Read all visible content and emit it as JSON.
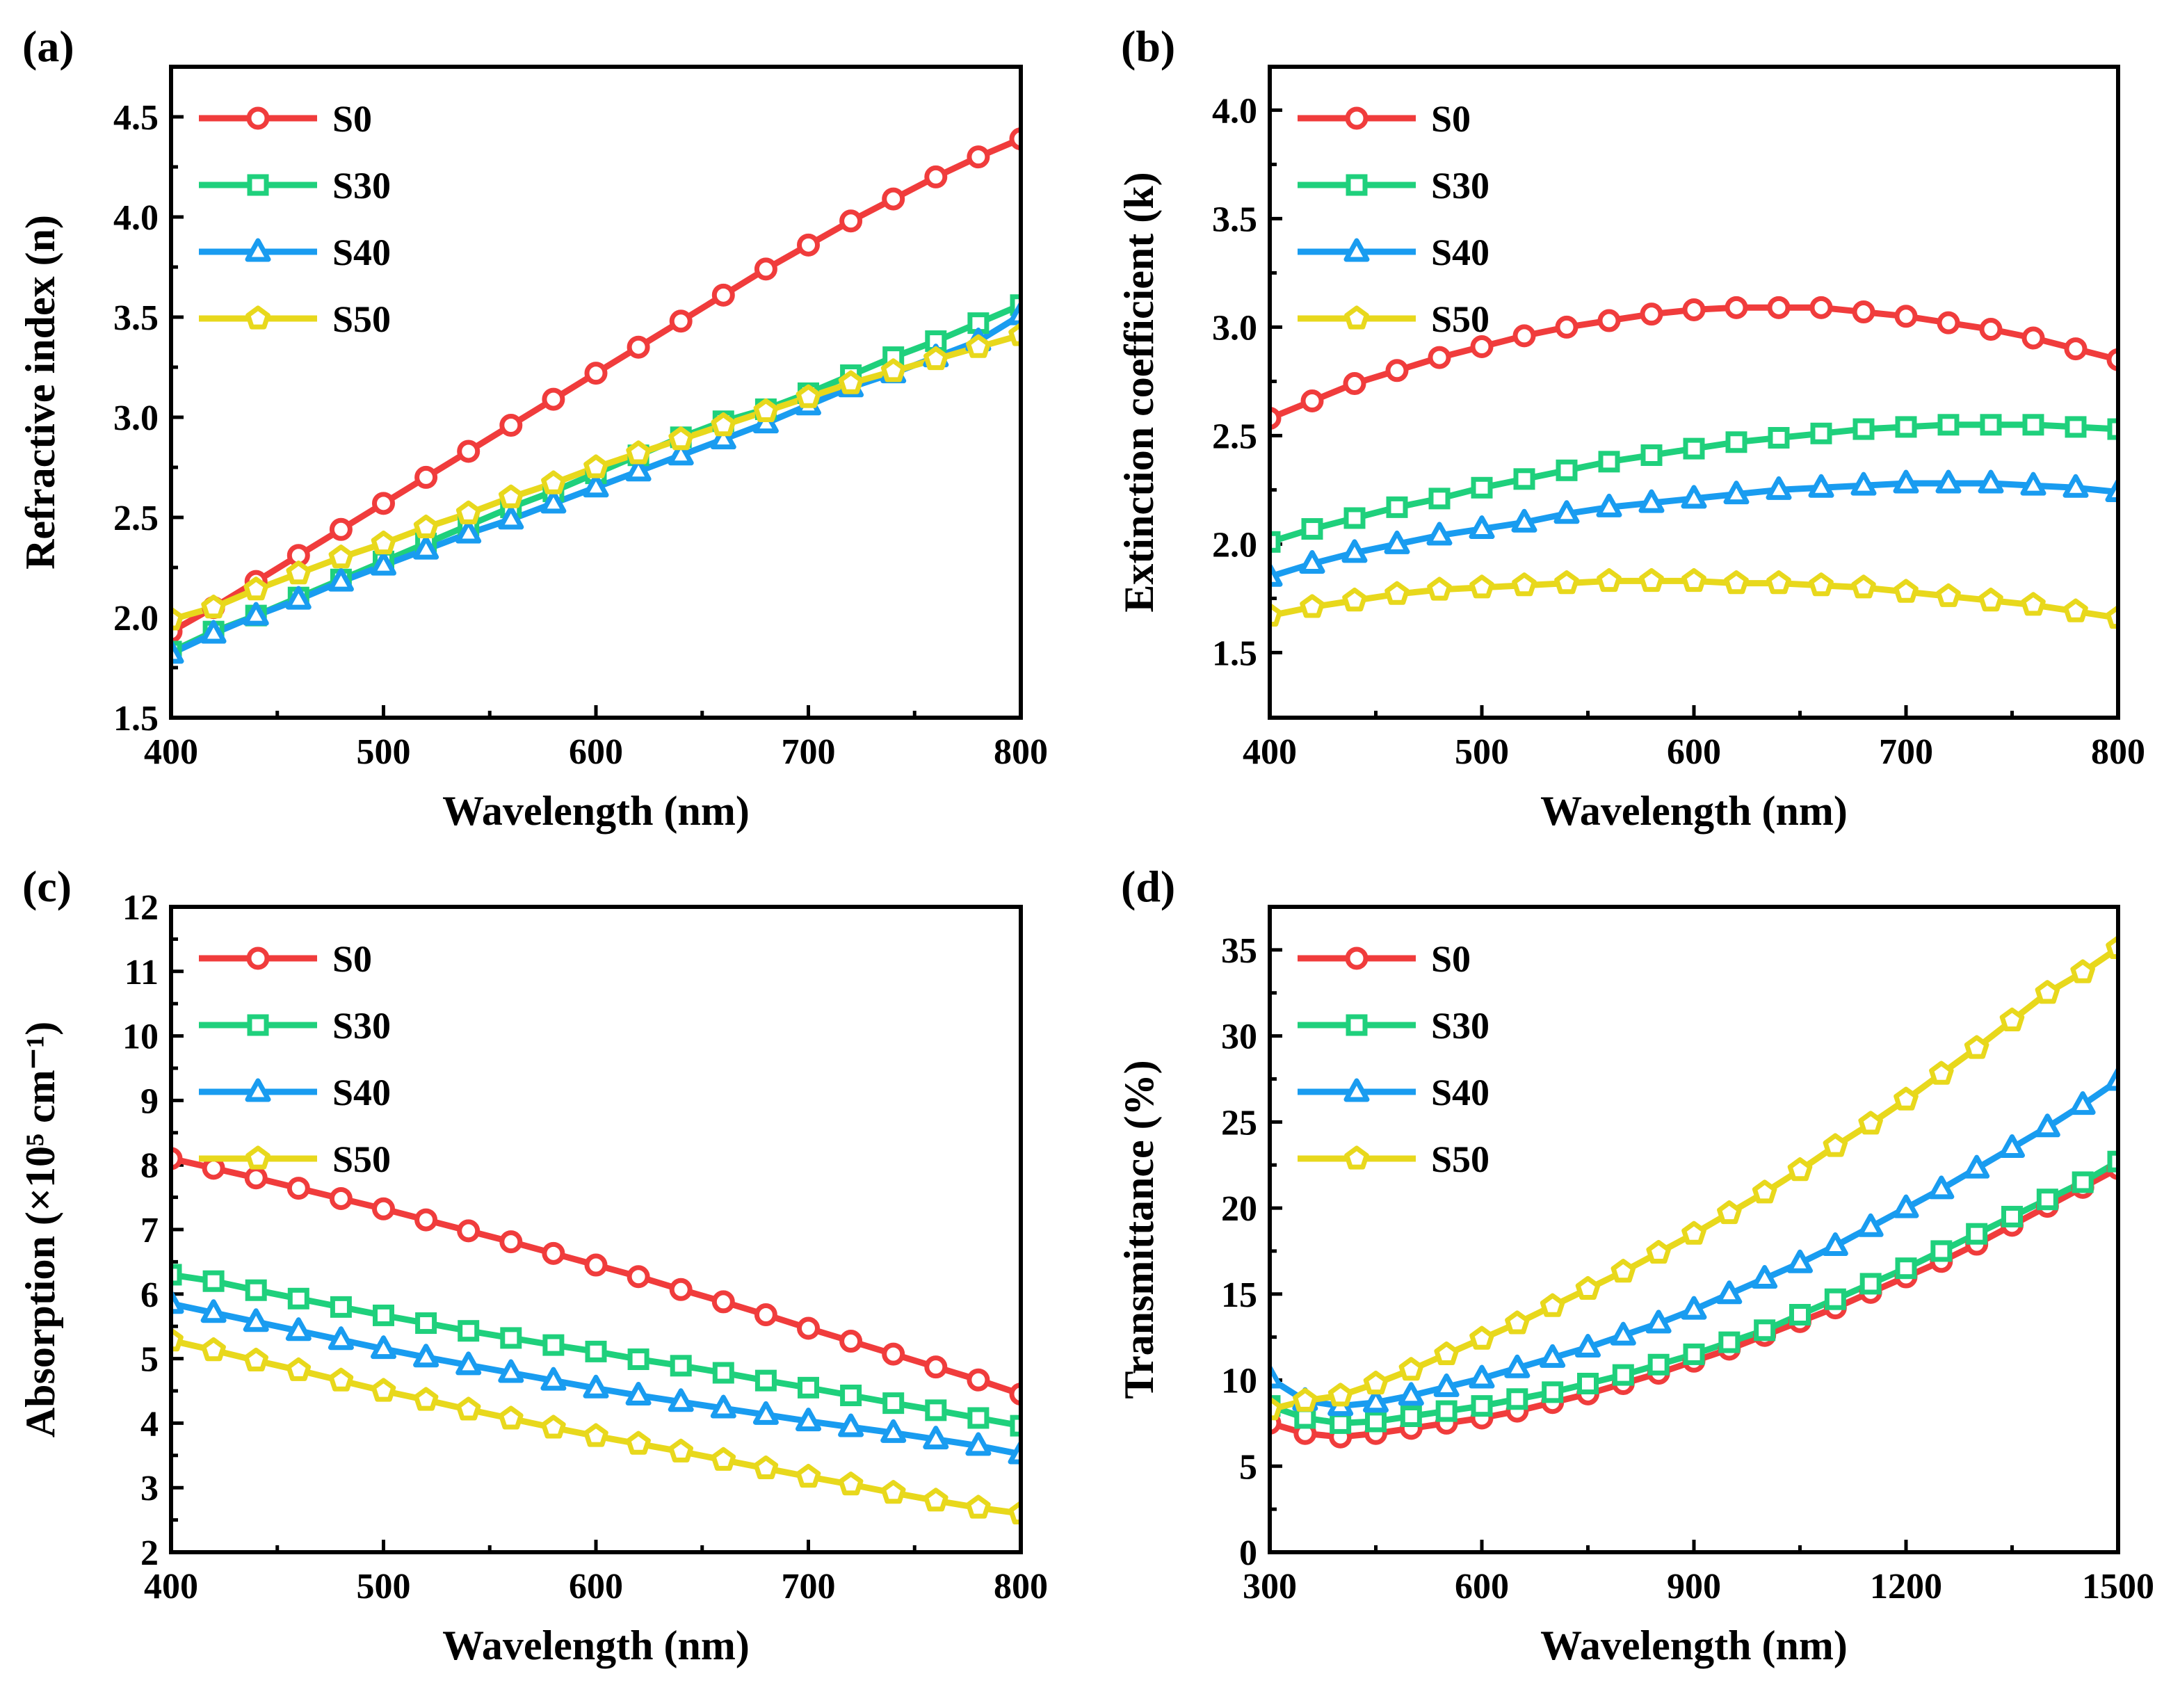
{
  "series_style": {
    "S0": {
      "color": "#f03c3c",
      "marker": "circle"
    },
    "S30": {
      "color": "#1fd07c",
      "marker": "square"
    },
    "S40": {
      "color": "#199cf0",
      "marker": "triangle"
    },
    "S50": {
      "color": "#e8d81c",
      "marker": "pentagon"
    }
  },
  "chart_data": [
    {
      "type": "line",
      "panel_label": "(a)",
      "title": "",
      "xlabel": "Wavelength (nm)",
      "ylabel": "Refractive index (n)",
      "xlim": [
        400,
        800
      ],
      "ylim": [
        1.5,
        4.75
      ],
      "xticks": [
        400,
        500,
        600,
        700,
        800
      ],
      "xtick_labels": [
        "400",
        "500",
        "600",
        "700",
        "800"
      ],
      "yticks": [
        1.5,
        2.0,
        2.5,
        3.0,
        3.5,
        4.0,
        4.5
      ],
      "ytick_labels": [
        "1.5",
        "2.0",
        "2.5",
        "3.0",
        "3.5",
        "4.0",
        "4.5"
      ],
      "legend": [
        "S0",
        "S30",
        "S40",
        "S50"
      ],
      "legend_position": "top-left",
      "x": [
        400,
        420,
        440,
        460,
        480,
        500,
        520,
        540,
        560,
        580,
        600,
        620,
        640,
        660,
        680,
        700,
        720,
        740,
        760,
        780,
        800
      ],
      "series": [
        {
          "name": "S0",
          "values": [
            1.93,
            2.05,
            2.18,
            2.31,
            2.44,
            2.57,
            2.7,
            2.83,
            2.96,
            3.09,
            3.22,
            3.35,
            3.48,
            3.61,
            3.74,
            3.86,
            3.98,
            4.09,
            4.2,
            4.3,
            4.39
          ]
        },
        {
          "name": "S30",
          "values": [
            1.83,
            1.93,
            2.01,
            2.1,
            2.19,
            2.28,
            2.37,
            2.46,
            2.55,
            2.63,
            2.72,
            2.81,
            2.9,
            2.98,
            3.04,
            3.12,
            3.21,
            3.3,
            3.38,
            3.47,
            3.56
          ]
        },
        {
          "name": "S40",
          "values": [
            1.82,
            1.92,
            2.01,
            2.09,
            2.18,
            2.26,
            2.34,
            2.42,
            2.49,
            2.57,
            2.65,
            2.73,
            2.81,
            2.89,
            2.97,
            3.06,
            3.15,
            3.22,
            3.3,
            3.38,
            3.51
          ]
        },
        {
          "name": "S50",
          "values": [
            1.99,
            2.05,
            2.14,
            2.22,
            2.3,
            2.37,
            2.45,
            2.52,
            2.6,
            2.67,
            2.75,
            2.82,
            2.89,
            2.96,
            3.03,
            3.1,
            3.17,
            3.23,
            3.29,
            3.35,
            3.41
          ]
        }
      ]
    },
    {
      "type": "line",
      "panel_label": "(b)",
      "title": "",
      "xlabel": "Wavelength (nm)",
      "ylabel": "Extinction coefficient (k)",
      "xlim": [
        400,
        800
      ],
      "ylim": [
        1.2,
        4.2
      ],
      "xticks": [
        400,
        500,
        600,
        700,
        800
      ],
      "xtick_labels": [
        "400",
        "500",
        "600",
        "700",
        "800"
      ],
      "yticks": [
        1.5,
        2.0,
        2.5,
        3.0,
        3.5,
        4.0
      ],
      "ytick_labels": [
        "1.5",
        "2.0",
        "2.5",
        "3.0",
        "3.5",
        "4.0"
      ],
      "legend": [
        "S0",
        "S30",
        "S40",
        "S50"
      ],
      "legend_position": "top-left",
      "x": [
        400,
        420,
        440,
        460,
        480,
        500,
        520,
        540,
        560,
        580,
        600,
        620,
        640,
        660,
        680,
        700,
        720,
        740,
        760,
        780,
        800
      ],
      "series": [
        {
          "name": "S0",
          "values": [
            2.58,
            2.66,
            2.74,
            2.8,
            2.86,
            2.91,
            2.96,
            3.0,
            3.03,
            3.06,
            3.08,
            3.09,
            3.09,
            3.09,
            3.07,
            3.05,
            3.02,
            2.99,
            2.95,
            2.9,
            2.85
          ]
        },
        {
          "name": "S30",
          "values": [
            2.01,
            2.07,
            2.12,
            2.17,
            2.21,
            2.26,
            2.3,
            2.34,
            2.38,
            2.41,
            2.44,
            2.47,
            2.49,
            2.51,
            2.53,
            2.54,
            2.55,
            2.55,
            2.55,
            2.54,
            2.53
          ]
        },
        {
          "name": "S40",
          "values": [
            1.85,
            1.91,
            1.96,
            2.0,
            2.04,
            2.07,
            2.1,
            2.14,
            2.17,
            2.19,
            2.21,
            2.23,
            2.25,
            2.26,
            2.27,
            2.28,
            2.28,
            2.28,
            2.27,
            2.26,
            2.24
          ]
        },
        {
          "name": "S50",
          "values": [
            1.67,
            1.71,
            1.74,
            1.77,
            1.79,
            1.8,
            1.81,
            1.82,
            1.83,
            1.83,
            1.83,
            1.82,
            1.82,
            1.81,
            1.8,
            1.78,
            1.76,
            1.74,
            1.72,
            1.69,
            1.66
          ]
        }
      ]
    },
    {
      "type": "line",
      "panel_label": "(c)",
      "title": "",
      "xlabel": "Wavelength (nm)",
      "ylabel": "Absorption (×10⁵ cm⁻¹)",
      "xlim": [
        400,
        800
      ],
      "ylim": [
        2,
        12
      ],
      "xticks": [
        400,
        500,
        600,
        700,
        800
      ],
      "xtick_labels": [
        "400",
        "500",
        "600",
        "700",
        "800"
      ],
      "yticks": [
        2,
        3,
        4,
        5,
        6,
        7,
        8,
        9,
        10,
        11,
        12
      ],
      "ytick_labels": [
        "2",
        "3",
        "4",
        "5",
        "6",
        "7",
        "8",
        "9",
        "10",
        "11",
        "12"
      ],
      "legend": [
        "S0",
        "S30",
        "S40",
        "S50"
      ],
      "legend_position": "top-left",
      "x": [
        400,
        420,
        440,
        460,
        480,
        500,
        520,
        540,
        560,
        580,
        600,
        620,
        640,
        660,
        680,
        700,
        720,
        740,
        760,
        780,
        800
      ],
      "series": [
        {
          "name": "S0",
          "values": [
            8.1,
            7.95,
            7.8,
            7.64,
            7.48,
            7.32,
            7.15,
            6.98,
            6.81,
            6.63,
            6.45,
            6.27,
            6.07,
            5.88,
            5.68,
            5.47,
            5.27,
            5.07,
            4.87,
            4.67,
            4.45
          ]
        },
        {
          "name": "S30",
          "values": [
            6.3,
            6.2,
            6.06,
            5.93,
            5.8,
            5.67,
            5.55,
            5.43,
            5.32,
            5.21,
            5.11,
            4.99,
            4.89,
            4.78,
            4.66,
            4.55,
            4.43,
            4.31,
            4.2,
            4.08,
            3.96
          ]
        },
        {
          "name": "S40",
          "values": [
            5.85,
            5.71,
            5.57,
            5.43,
            5.29,
            5.15,
            5.02,
            4.9,
            4.78,
            4.66,
            4.54,
            4.43,
            4.33,
            4.23,
            4.13,
            4.03,
            3.94,
            3.85,
            3.75,
            3.65,
            3.52
          ]
        },
        {
          "name": "S50",
          "values": [
            5.28,
            5.13,
            4.97,
            4.82,
            4.66,
            4.5,
            4.36,
            4.21,
            4.07,
            3.93,
            3.8,
            3.68,
            3.56,
            3.43,
            3.3,
            3.17,
            3.05,
            2.92,
            2.8,
            2.69,
            2.6
          ]
        }
      ]
    },
    {
      "type": "line",
      "panel_label": "(d)",
      "title": "",
      "xlabel": "Wavelength (nm)",
      "ylabel": "Transmittance (%)",
      "xlim": [
        300,
        1500
      ],
      "ylim": [
        0,
        37.5
      ],
      "xticks": [
        300,
        600,
        900,
        1200,
        1500
      ],
      "xtick_labels": [
        "300",
        "600",
        "900",
        "1200",
        "1500"
      ],
      "yticks": [
        0,
        5,
        10,
        15,
        20,
        25,
        30,
        35
      ],
      "ytick_labels": [
        "0",
        "5",
        "10",
        "15",
        "20",
        "25",
        "30",
        "35"
      ],
      "legend": [
        "S0",
        "S30",
        "S40",
        "S50"
      ],
      "legend_position": "top-left",
      "x": [
        300,
        350,
        400,
        450,
        500,
        550,
        600,
        650,
        700,
        750,
        800,
        850,
        900,
        950,
        1000,
        1050,
        1100,
        1150,
        1200,
        1250,
        1300,
        1350,
        1400,
        1450,
        1500
      ],
      "series": [
        {
          "name": "S0",
          "values": [
            7.5,
            6.9,
            6.7,
            6.9,
            7.2,
            7.5,
            7.8,
            8.2,
            8.7,
            9.2,
            9.8,
            10.4,
            11.1,
            11.8,
            12.6,
            13.4,
            14.2,
            15.1,
            16.0,
            16.9,
            17.9,
            19.0,
            20.1,
            21.2,
            22.3
          ]
        },
        {
          "name": "S30",
          "values": [
            8.5,
            7.8,
            7.5,
            7.6,
            7.9,
            8.2,
            8.5,
            8.9,
            9.3,
            9.8,
            10.3,
            10.9,
            11.5,
            12.2,
            12.9,
            13.8,
            14.7,
            15.6,
            16.5,
            17.5,
            18.5,
            19.5,
            20.5,
            21.5,
            22.7
          ]
        },
        {
          "name": "S40",
          "values": [
            10.1,
            8.8,
            8.5,
            8.7,
            9.1,
            9.6,
            10.1,
            10.7,
            11.3,
            11.9,
            12.6,
            13.3,
            14.1,
            15.0,
            15.9,
            16.8,
            17.8,
            18.9,
            20.0,
            21.1,
            22.3,
            23.5,
            24.7,
            26.0,
            27.4
          ]
        },
        {
          "name": "S50",
          "values": [
            8.3,
            8.8,
            9.1,
            9.8,
            10.6,
            11.5,
            12.4,
            13.3,
            14.3,
            15.3,
            16.3,
            17.4,
            18.5,
            19.7,
            20.9,
            22.2,
            23.6,
            24.9,
            26.3,
            27.8,
            29.3,
            30.9,
            32.5,
            33.7,
            35.1
          ]
        }
      ]
    }
  ]
}
